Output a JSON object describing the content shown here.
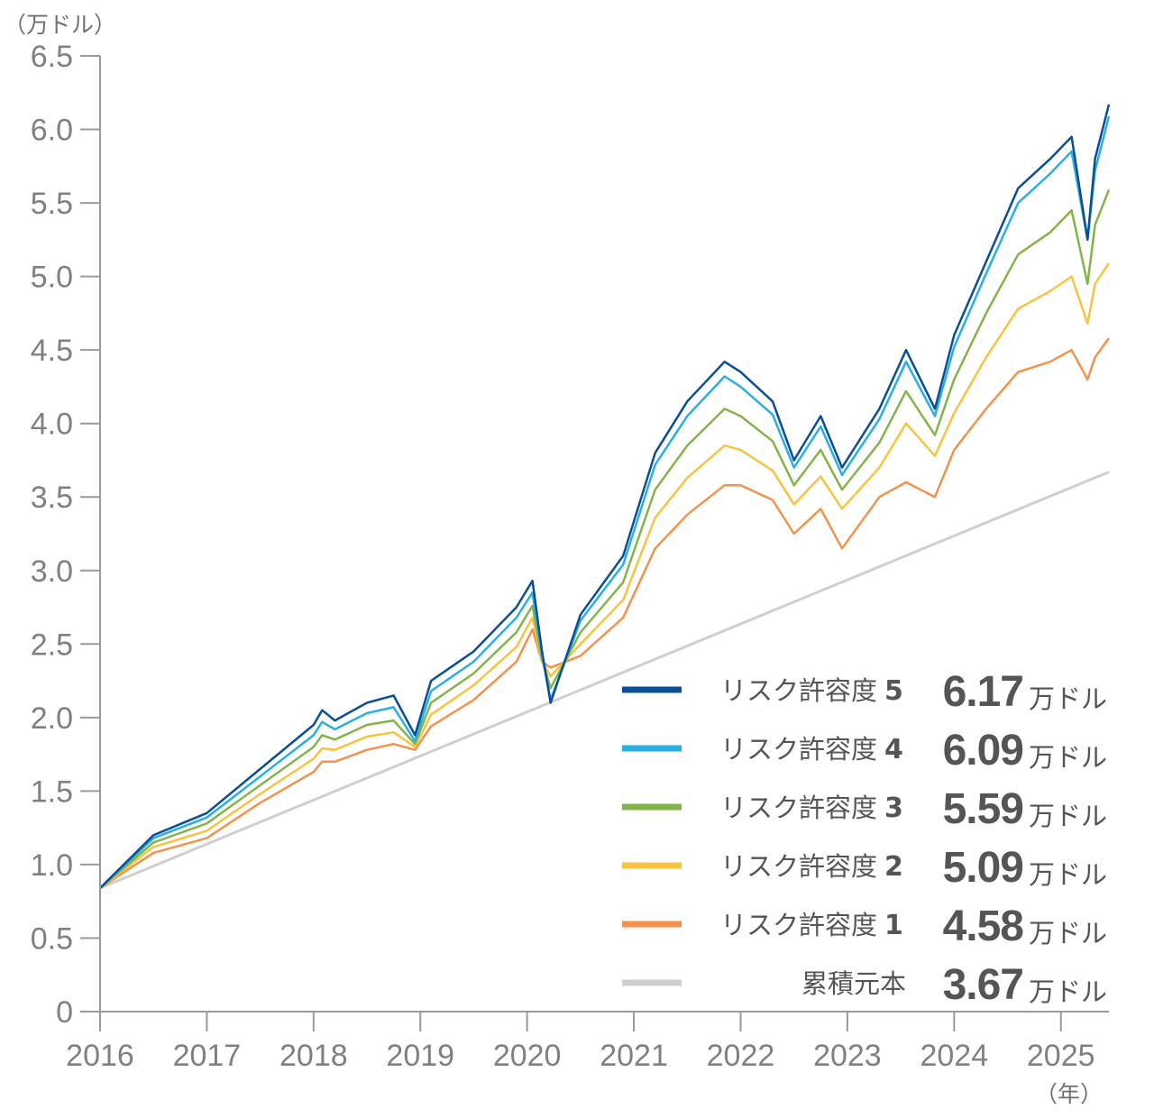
{
  "chart_data": {
    "type": "line",
    "title": "",
    "y_unit_label": "（万ドル）",
    "x_unit_label": "（年）",
    "ylim": [
      0,
      6.5
    ],
    "xlim": [
      2016.0,
      2025.45
    ],
    "y_ticks": [
      "0",
      "0.5",
      "1.0",
      "1.5",
      "2.0",
      "2.5",
      "3.0",
      "3.5",
      "4.0",
      "4.5",
      "5.0",
      "5.5",
      "6.0",
      "6.5"
    ],
    "x_ticks": [
      "2016",
      "2017",
      "2018",
      "2019",
      "2020",
      "2021",
      "2022",
      "2023",
      "2024",
      "2025"
    ],
    "grid": false,
    "legend_position": "bottom-right",
    "value_unit": "万ドル",
    "series": [
      {
        "name": "リスク許容度",
        "level": "5",
        "final_value": "6.17",
        "color": "#0a4f96",
        "x": [
          2016.0,
          2016.5,
          2017.0,
          2017.5,
          2018.0,
          2018.08,
          2018.2,
          2018.5,
          2018.75,
          2018.95,
          2019.1,
          2019.5,
          2019.9,
          2020.05,
          2020.14,
          2020.22,
          2020.5,
          2020.9,
          2021.2,
          2021.5,
          2021.85,
          2022.0,
          2022.3,
          2022.5,
          2022.75,
          2022.95,
          2023.3,
          2023.55,
          2023.82,
          2024.0,
          2024.3,
          2024.6,
          2024.9,
          2025.1,
          2025.25,
          2025.32,
          2025.45
        ],
        "y": [
          0.84,
          1.2,
          1.35,
          1.65,
          1.95,
          2.05,
          1.98,
          2.1,
          2.15,
          1.88,
          2.25,
          2.45,
          2.75,
          2.93,
          2.45,
          2.1,
          2.7,
          3.1,
          3.8,
          4.15,
          4.42,
          4.35,
          4.15,
          3.75,
          4.05,
          3.7,
          4.1,
          4.5,
          4.1,
          4.6,
          5.1,
          5.6,
          5.8,
          5.95,
          5.25,
          5.8,
          6.17
        ]
      },
      {
        "name": "リスク許容度",
        "level": "4",
        "final_value": "6.09",
        "color": "#29afe3",
        "x": [
          2016.0,
          2016.5,
          2017.0,
          2017.5,
          2018.0,
          2018.08,
          2018.2,
          2018.5,
          2018.75,
          2018.95,
          2019.1,
          2019.5,
          2019.9,
          2020.05,
          2020.14,
          2020.22,
          2020.5,
          2020.9,
          2021.2,
          2021.5,
          2021.85,
          2022.0,
          2022.3,
          2022.5,
          2022.75,
          2022.95,
          2023.3,
          2023.55,
          2023.82,
          2024.0,
          2024.3,
          2024.6,
          2024.9,
          2025.1,
          2025.25,
          2025.32,
          2025.45
        ],
        "y": [
          0.84,
          1.18,
          1.32,
          1.6,
          1.88,
          1.97,
          1.92,
          2.03,
          2.07,
          1.84,
          2.18,
          2.38,
          2.68,
          2.85,
          2.42,
          2.12,
          2.66,
          3.04,
          3.72,
          4.05,
          4.32,
          4.25,
          4.06,
          3.7,
          3.98,
          3.65,
          4.03,
          4.42,
          4.05,
          4.52,
          5.02,
          5.5,
          5.7,
          5.85,
          5.25,
          5.72,
          6.09
        ]
      },
      {
        "name": "リスク許容度",
        "level": "3",
        "final_value": "5.59",
        "color": "#84b449",
        "x": [
          2016.0,
          2016.5,
          2017.0,
          2017.5,
          2018.0,
          2018.08,
          2018.2,
          2018.5,
          2018.75,
          2018.95,
          2019.1,
          2019.5,
          2019.9,
          2020.05,
          2020.14,
          2020.22,
          2020.5,
          2020.9,
          2021.2,
          2021.5,
          2021.85,
          2022.0,
          2022.3,
          2022.5,
          2022.75,
          2022.95,
          2023.3,
          2023.55,
          2023.82,
          2024.0,
          2024.3,
          2024.6,
          2024.9,
          2025.1,
          2025.25,
          2025.32,
          2025.45
        ],
        "y": [
          0.84,
          1.15,
          1.28,
          1.54,
          1.8,
          1.88,
          1.85,
          1.95,
          1.98,
          1.82,
          2.1,
          2.3,
          2.58,
          2.76,
          2.4,
          2.2,
          2.58,
          2.92,
          3.55,
          3.85,
          4.1,
          4.05,
          3.88,
          3.58,
          3.82,
          3.55,
          3.87,
          4.22,
          3.92,
          4.3,
          4.75,
          5.15,
          5.3,
          5.45,
          4.95,
          5.35,
          5.59
        ]
      },
      {
        "name": "リスク許容度",
        "level": "2",
        "final_value": "5.09",
        "color": "#f9c340",
        "x": [
          2016.0,
          2016.5,
          2017.0,
          2017.5,
          2018.0,
          2018.08,
          2018.2,
          2018.5,
          2018.75,
          2018.95,
          2019.1,
          2019.5,
          2019.9,
          2020.05,
          2020.14,
          2020.22,
          2020.5,
          2020.9,
          2021.2,
          2021.5,
          2021.85,
          2022.0,
          2022.3,
          2022.5,
          2022.75,
          2022.95,
          2023.3,
          2023.55,
          2023.82,
          2024.0,
          2024.3,
          2024.6,
          2024.9,
          2025.1,
          2025.25,
          2025.32,
          2025.45
        ],
        "y": [
          0.84,
          1.12,
          1.23,
          1.48,
          1.72,
          1.79,
          1.78,
          1.87,
          1.9,
          1.8,
          2.02,
          2.22,
          2.48,
          2.68,
          2.38,
          2.28,
          2.5,
          2.8,
          3.36,
          3.63,
          3.85,
          3.82,
          3.68,
          3.45,
          3.64,
          3.42,
          3.7,
          4.0,
          3.78,
          4.07,
          4.45,
          4.78,
          4.9,
          5.0,
          4.68,
          4.95,
          5.09
        ]
      },
      {
        "name": "リスク許容度",
        "level": "1",
        "final_value": "4.58",
        "color": "#f2924c",
        "x": [
          2016.0,
          2016.5,
          2017.0,
          2017.5,
          2018.0,
          2018.08,
          2018.2,
          2018.5,
          2018.75,
          2018.95,
          2019.1,
          2019.5,
          2019.9,
          2020.05,
          2020.14,
          2020.22,
          2020.5,
          2020.9,
          2021.2,
          2021.5,
          2021.85,
          2022.0,
          2022.3,
          2022.5,
          2022.75,
          2022.95,
          2023.3,
          2023.55,
          2023.82,
          2024.0,
          2024.3,
          2024.6,
          2024.9,
          2025.1,
          2025.25,
          2025.32,
          2025.45
        ],
        "y": [
          0.84,
          1.08,
          1.18,
          1.42,
          1.63,
          1.7,
          1.7,
          1.78,
          1.82,
          1.78,
          1.94,
          2.12,
          2.38,
          2.6,
          2.38,
          2.34,
          2.42,
          2.68,
          3.15,
          3.38,
          3.58,
          3.58,
          3.48,
          3.25,
          3.42,
          3.15,
          3.5,
          3.6,
          3.5,
          3.82,
          4.1,
          4.35,
          4.42,
          4.5,
          4.3,
          4.45,
          4.58
        ]
      },
      {
        "name": "累積元本",
        "level": "",
        "final_value": "3.67",
        "color": "#cfcfcf",
        "x": [
          2016.0,
          2025.45
        ],
        "y": [
          0.84,
          3.67
        ]
      }
    ]
  }
}
